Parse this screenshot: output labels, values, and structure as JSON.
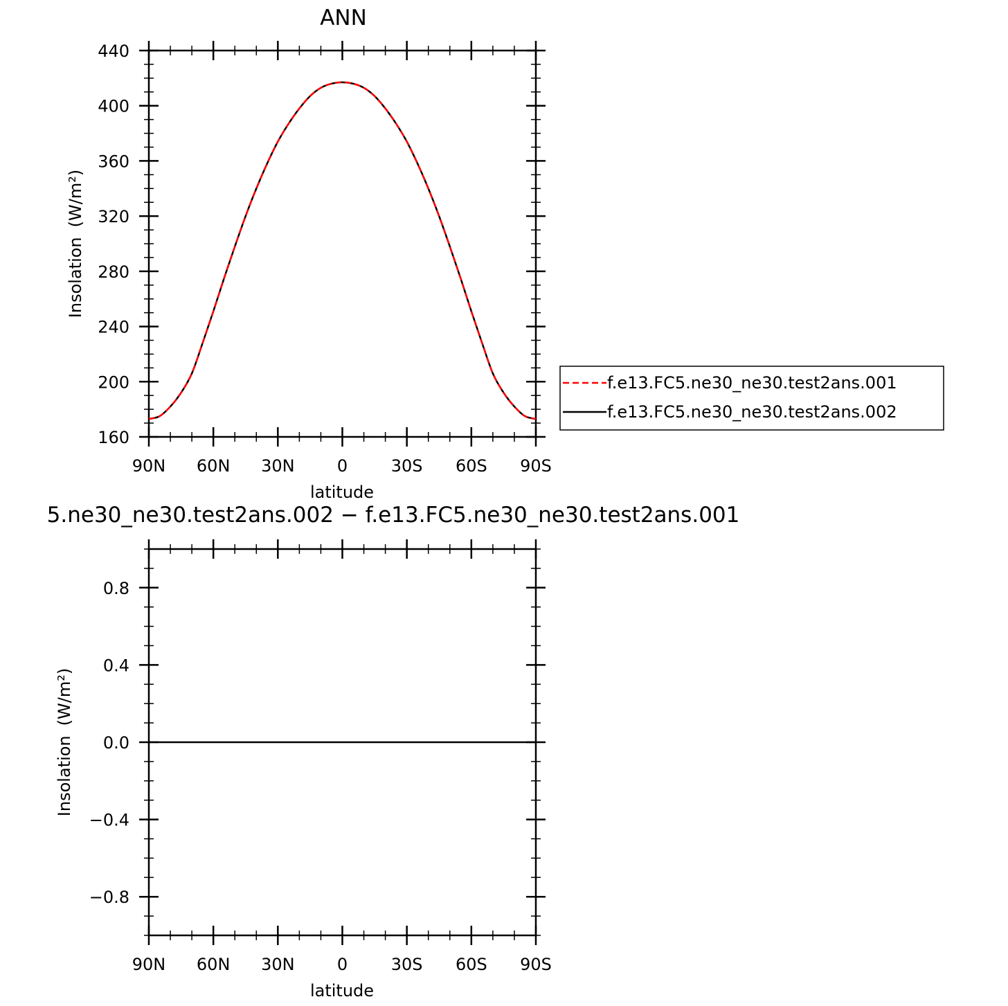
{
  "chart_data": [
    {
      "type": "line",
      "title": "ANN",
      "xlabel": "latitude",
      "ylabel": "Insolation",
      "ylabel_unit": "(W/m²)",
      "xlim": [
        90,
        -90
      ],
      "ylim": [
        160,
        440
      ],
      "x_ticks": [
        90,
        60,
        30,
        0,
        -30,
        -60,
        -90
      ],
      "x_tick_labels": [
        "90N",
        "60N",
        "30N",
        "0",
        "30S",
        "60S",
        "90S"
      ],
      "y_ticks": [
        160,
        200,
        240,
        280,
        320,
        360,
        400,
        440
      ],
      "y_tick_labels": [
        "160",
        "200",
        "240",
        "280",
        "320",
        "360",
        "400",
        "440"
      ],
      "legend_position": "right",
      "series": [
        {
          "name": "f.e13.FC5.ne30_ne30.test2ans.001",
          "color": "#ff0000",
          "dash": true,
          "x": [
            90,
            85,
            80,
            75,
            70,
            65,
            60,
            55,
            50,
            45,
            40,
            35,
            30,
            25,
            20,
            15,
            10,
            5,
            0,
            -5,
            -10,
            -15,
            -20,
            -25,
            -30,
            -35,
            -40,
            -45,
            -50,
            -55,
            -60,
            -65,
            -70,
            -75,
            -80,
            -85,
            -90
          ],
          "y": [
            173,
            175,
            182,
            192,
            206,
            228,
            251,
            275,
            298,
            320,
            340,
            358,
            374,
            387,
            398,
            407,
            413,
            416,
            417,
            416,
            413,
            407,
            398,
            387,
            374,
            358,
            340,
            320,
            298,
            275,
            251,
            228,
            206,
            192,
            182,
            175,
            173
          ]
        },
        {
          "name": "f.e13.FC5.ne30_ne30.test2ans.002",
          "color": "#000000",
          "dash": false,
          "x": [
            90,
            85,
            80,
            75,
            70,
            65,
            60,
            55,
            50,
            45,
            40,
            35,
            30,
            25,
            20,
            15,
            10,
            5,
            0,
            -5,
            -10,
            -15,
            -20,
            -25,
            -30,
            -35,
            -40,
            -45,
            -50,
            -55,
            -60,
            -65,
            -70,
            -75,
            -80,
            -85,
            -90
          ],
          "y": [
            173,
            175,
            182,
            192,
            206,
            228,
            251,
            275,
            298,
            320,
            340,
            358,
            374,
            387,
            398,
            407,
            413,
            416,
            417,
            416,
            413,
            407,
            398,
            387,
            374,
            358,
            340,
            320,
            298,
            275,
            251,
            228,
            206,
            192,
            182,
            175,
            173
          ]
        }
      ]
    },
    {
      "type": "line",
      "title": "5.ne30_ne30.test2ans.002 − f.e13.FC5.ne30_ne30.test2ans.001",
      "xlabel": "latitude",
      "ylabel": "Insolation",
      "ylabel_unit": "(W/m²)",
      "xlim": [
        90,
        -90
      ],
      "ylim": [
        -1,
        1
      ],
      "x_ticks": [
        90,
        60,
        30,
        0,
        -30,
        -60,
        -90
      ],
      "x_tick_labels": [
        "90N",
        "60N",
        "30N",
        "0",
        "30S",
        "60S",
        "90S"
      ],
      "y_ticks": [
        -0.8,
        -0.4,
        0.0,
        0.4,
        0.8
      ],
      "y_tick_labels": [
        "−0.8",
        "−0.4",
        "0.0",
        "0.4",
        "0.8"
      ],
      "series": [
        {
          "color": "#000000",
          "dash": false,
          "x": [
            90,
            45,
            0,
            -45,
            -90
          ],
          "y": [
            0,
            0,
            0,
            0,
            0
          ]
        }
      ]
    }
  ]
}
